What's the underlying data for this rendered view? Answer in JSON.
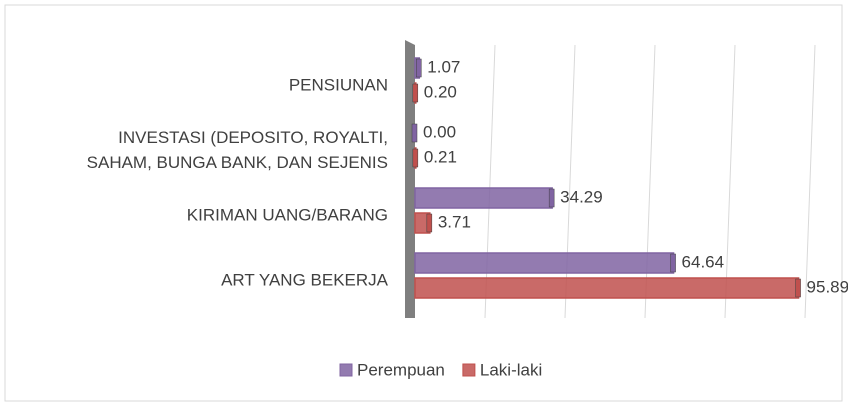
{
  "chart_data": {
    "type": "bar",
    "orientation": "horizontal",
    "categories": [
      "PENSIUNAN",
      "INVESTASI (DEPOSITO, ROYALTI,\nSAHAM, BUNGA BANK, DAN SEJENIS",
      "KIRIMAN UANG/BARANG",
      "ART YANG BEKERJA"
    ],
    "series": [
      {
        "name": "Perempuan",
        "color": "#8064a2",
        "values": [
          1.07,
          0,
          34.29,
          64.64
        ],
        "value_labels": [
          "1.07",
          "0.00",
          "34.29",
          "64.64"
        ]
      },
      {
        "name": "Laki-laki",
        "color": "#c0504d",
        "values": [
          0.2,
          0.21,
          3.71,
          95.89
        ],
        "value_labels": [
          "0.20",
          "0.21",
          "3.71",
          "95.89"
        ]
      }
    ],
    "xlim": [
      0,
      100
    ],
    "xticks": [
      0,
      20,
      40,
      60,
      80,
      100
    ],
    "grid": true,
    "legend": "bottom"
  }
}
